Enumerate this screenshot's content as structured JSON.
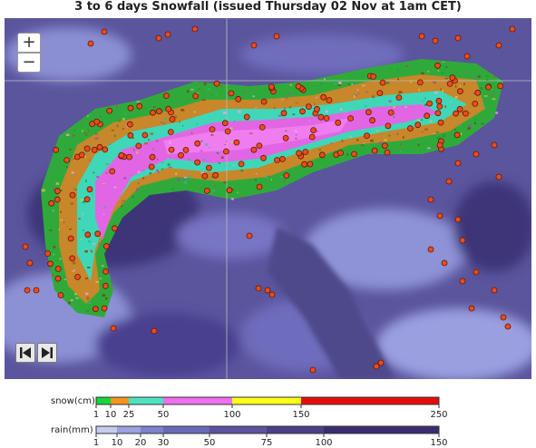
{
  "title": "3 to 6 days Snowfall (issued Thursday 02 Nov at 1am CET)",
  "controls": {
    "zoom_in": "+",
    "zoom_out": "−",
    "first_icon": "skip-first-icon",
    "next_icon": "play-next-icon"
  },
  "legend": {
    "snow": {
      "label": "snow(cm)",
      "ticks": [
        "1",
        "10",
        "25",
        "50",
        "100",
        "150",
        "250"
      ],
      "colors": [
        "#16d63a",
        "#f5951e",
        "#4ee2c0",
        "#ee6fef",
        "#ffff1a",
        "#e60b0b"
      ]
    },
    "rain": {
      "label": "rain(mm)",
      "ticks": [
        "1",
        "10",
        "20",
        "30",
        "50",
        "75",
        "100",
        "150"
      ],
      "colors": [
        "#c6ccf0",
        "#9aa2e0",
        "#7d82cc",
        "#6a69b8",
        "#5a559f",
        "#4a3f88",
        "#3a2c6e"
      ]
    }
  }
}
